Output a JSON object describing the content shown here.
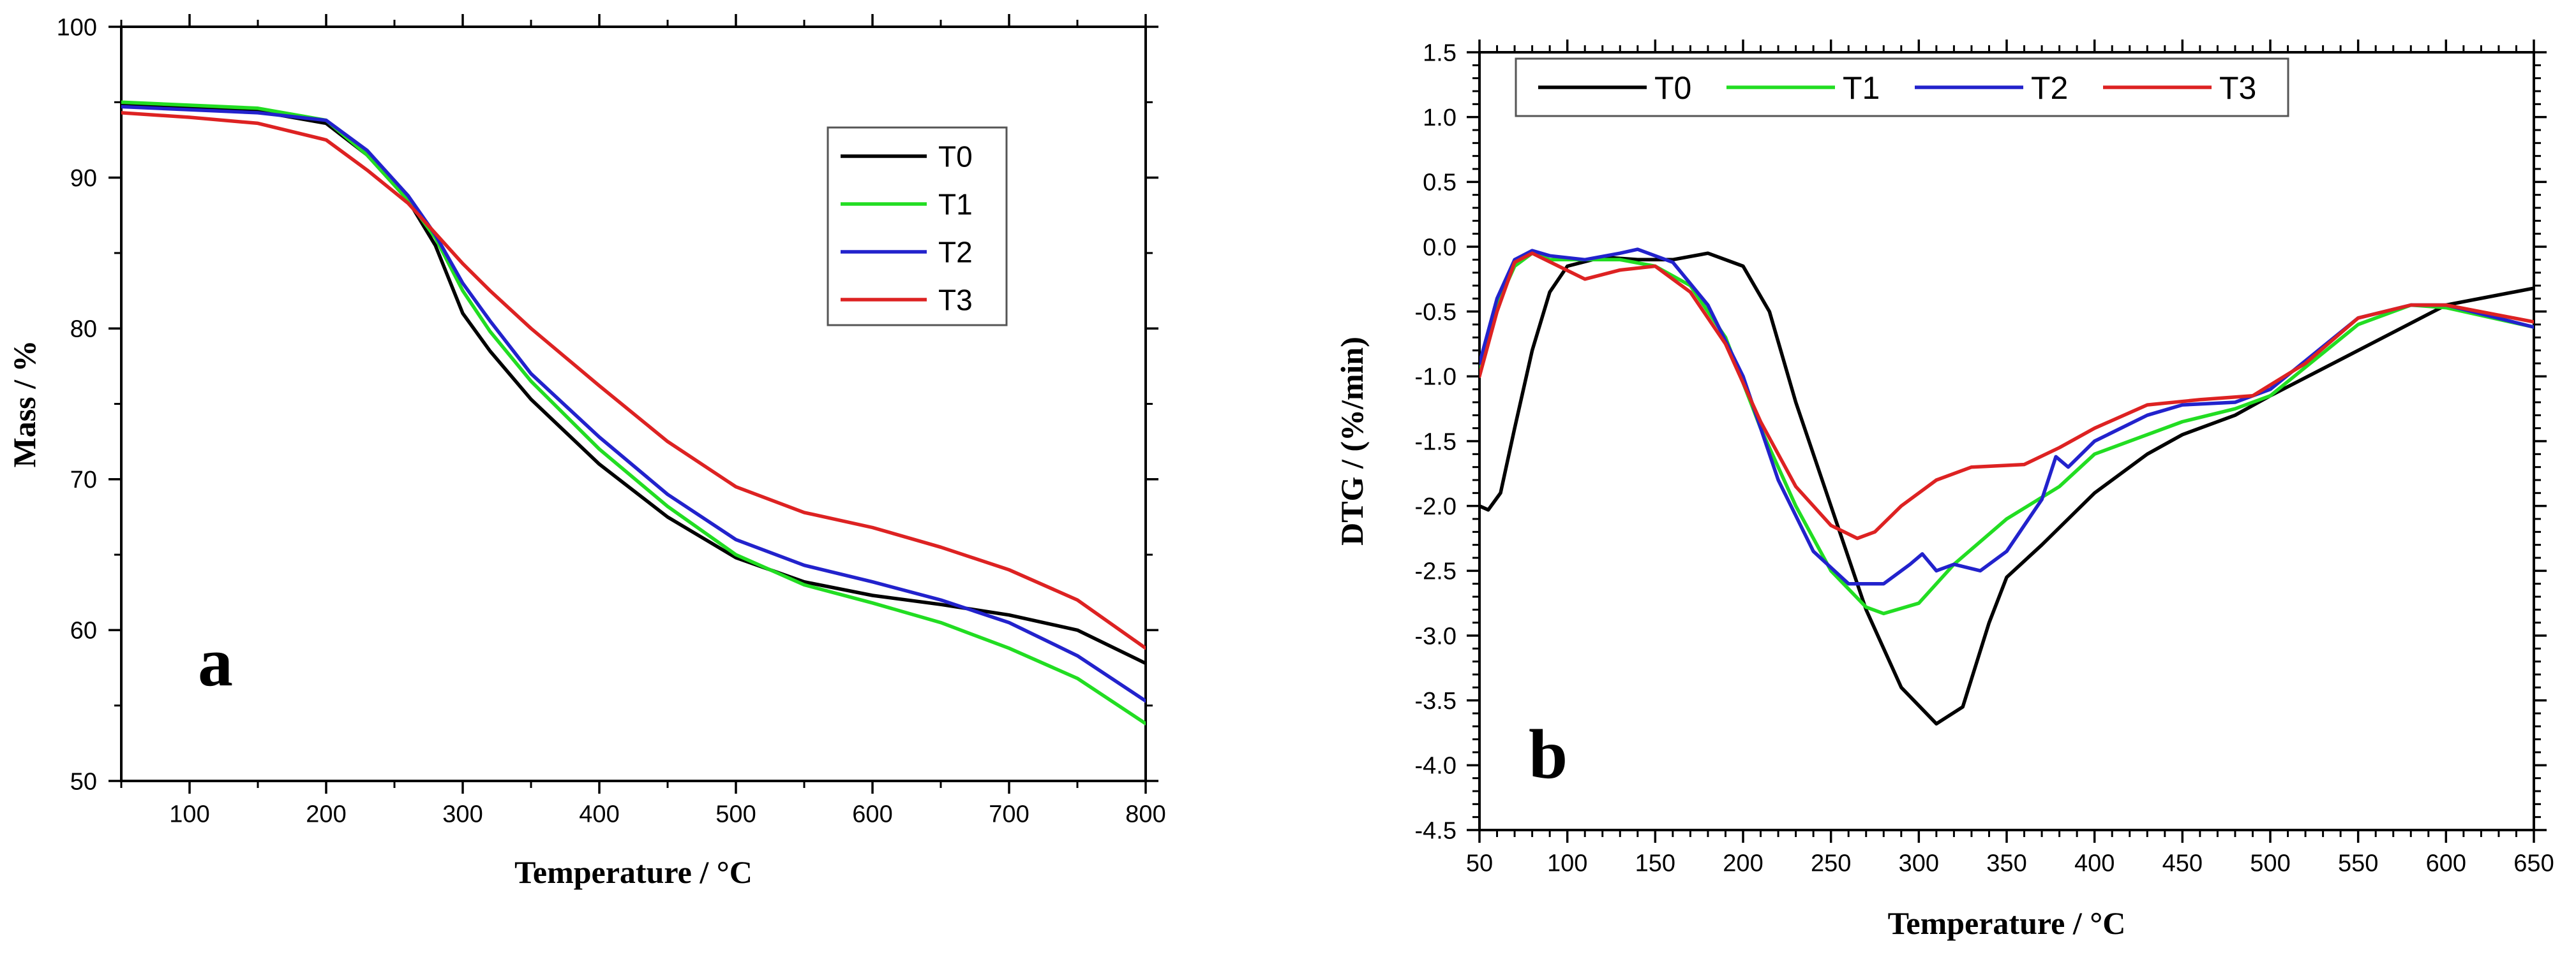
{
  "chart_data": [
    {
      "type": "line",
      "panel_label": "a",
      "title": "",
      "xlabel": "Temperature / °C",
      "ylabel": "Mass / %",
      "xlim": [
        50,
        800
      ],
      "ylim": [
        50,
        100
      ],
      "xticks": [
        100,
        200,
        300,
        400,
        500,
        600,
        700,
        800
      ],
      "yticks": [
        50,
        60,
        70,
        80,
        90,
        100
      ],
      "x_minor_step": 50,
      "y_minor_step": 5,
      "legend_position": "upper-right",
      "series": [
        {
          "name": "T0",
          "color": "#000000",
          "points": [
            [
              50,
              94.8
            ],
            [
              100,
              94.6
            ],
            [
              150,
              94.4
            ],
            [
              200,
              93.6
            ],
            [
              230,
              91.5
            ],
            [
              260,
              88.5
            ],
            [
              280,
              85.5
            ],
            [
              300,
              81.0
            ],
            [
              320,
              78.5
            ],
            [
              350,
              75.3
            ],
            [
              400,
              71.0
            ],
            [
              450,
              67.5
            ],
            [
              500,
              64.8
            ],
            [
              550,
              63.2
            ],
            [
              600,
              62.3
            ],
            [
              650,
              61.7
            ],
            [
              700,
              61.0
            ],
            [
              750,
              60.0
            ],
            [
              800,
              57.8
            ]
          ]
        },
        {
          "name": "T1",
          "color": "#22dd22",
          "points": [
            [
              50,
              95.0
            ],
            [
              100,
              94.8
            ],
            [
              150,
              94.6
            ],
            [
              200,
              93.8
            ],
            [
              230,
              91.5
            ],
            [
              260,
              88.5
            ],
            [
              280,
              86.0
            ],
            [
              300,
              82.5
            ],
            [
              320,
              79.8
            ],
            [
              350,
              76.5
            ],
            [
              400,
              72.0
            ],
            [
              450,
              68.2
            ],
            [
              500,
              65.0
            ],
            [
              550,
              63.0
            ],
            [
              600,
              61.8
            ],
            [
              650,
              60.5
            ],
            [
              700,
              58.8
            ],
            [
              750,
              56.8
            ],
            [
              800,
              53.8
            ]
          ]
        },
        {
          "name": "T2",
          "color": "#2222cc",
          "points": [
            [
              50,
              94.7
            ],
            [
              100,
              94.5
            ],
            [
              150,
              94.3
            ],
            [
              200,
              93.8
            ],
            [
              230,
              91.8
            ],
            [
              260,
              88.8
            ],
            [
              280,
              86.2
            ],
            [
              300,
              83.0
            ],
            [
              320,
              80.5
            ],
            [
              350,
              77.0
            ],
            [
              400,
              72.8
            ],
            [
              450,
              69.0
            ],
            [
              500,
              66.0
            ],
            [
              550,
              64.3
            ],
            [
              600,
              63.2
            ],
            [
              650,
              62.0
            ],
            [
              700,
              60.5
            ],
            [
              750,
              58.3
            ],
            [
              800,
              55.3
            ]
          ]
        },
        {
          "name": "T3",
          "color": "#dd2222",
          "points": [
            [
              50,
              94.3
            ],
            [
              100,
              94.0
            ],
            [
              150,
              93.6
            ],
            [
              200,
              92.5
            ],
            [
              230,
              90.5
            ],
            [
              260,
              88.3
            ],
            [
              280,
              86.3
            ],
            [
              300,
              84.3
            ],
            [
              320,
              82.5
            ],
            [
              350,
              80.0
            ],
            [
              400,
              76.2
            ],
            [
              450,
              72.5
            ],
            [
              500,
              69.5
            ],
            [
              550,
              67.8
            ],
            [
              600,
              66.8
            ],
            [
              650,
              65.5
            ],
            [
              700,
              64.0
            ],
            [
              750,
              62.0
            ],
            [
              800,
              58.8
            ]
          ]
        }
      ]
    },
    {
      "type": "line",
      "panel_label": "b",
      "title": "",
      "xlabel": "Temperature / °C",
      "ylabel": "DTG / (%/min)",
      "xlim": [
        50,
        650
      ],
      "ylim": [
        -4.5,
        1.5
      ],
      "xticks": [
        50,
        100,
        150,
        200,
        250,
        300,
        350,
        400,
        450,
        500,
        550,
        600,
        650
      ],
      "yticks": [
        -4.5,
        -4.0,
        -3.5,
        -3.0,
        -2.5,
        -2.0,
        -1.5,
        -1.0,
        -0.5,
        0.0,
        0.5,
        1.0,
        1.5
      ],
      "x_minor_step": 10,
      "y_minor_step": 0.1,
      "legend_position": "top",
      "series": [
        {
          "name": "T0",
          "color": "#000000",
          "points": [
            [
              50,
              -2.0
            ],
            [
              55,
              -2.03
            ],
            [
              62,
              -1.9
            ],
            [
              70,
              -1.4
            ],
            [
              80,
              -0.8
            ],
            [
              90,
              -0.35
            ],
            [
              100,
              -0.15
            ],
            [
              120,
              -0.08
            ],
            [
              140,
              -0.1
            ],
            [
              160,
              -0.1
            ],
            [
              180,
              -0.05
            ],
            [
              200,
              -0.15
            ],
            [
              215,
              -0.5
            ],
            [
              230,
              -1.2
            ],
            [
              250,
              -2.0
            ],
            [
              270,
              -2.8
            ],
            [
              290,
              -3.4
            ],
            [
              310,
              -3.68
            ],
            [
              325,
              -3.55
            ],
            [
              340,
              -2.9
            ],
            [
              350,
              -2.55
            ],
            [
              370,
              -2.3
            ],
            [
              400,
              -1.9
            ],
            [
              430,
              -1.6
            ],
            [
              450,
              -1.45
            ],
            [
              480,
              -1.3
            ],
            [
              500,
              -1.15
            ],
            [
              550,
              -0.8
            ],
            [
              600,
              -0.45
            ],
            [
              650,
              -0.32
            ]
          ]
        },
        {
          "name": "T1",
          "color": "#22dd22",
          "points": [
            [
              50,
              -0.95
            ],
            [
              60,
              -0.45
            ],
            [
              70,
              -0.15
            ],
            [
              80,
              -0.05
            ],
            [
              90,
              -0.1
            ],
            [
              110,
              -0.1
            ],
            [
              130,
              -0.1
            ],
            [
              150,
              -0.15
            ],
            [
              170,
              -0.3
            ],
            [
              190,
              -0.7
            ],
            [
              210,
              -1.4
            ],
            [
              230,
              -2.0
            ],
            [
              250,
              -2.5
            ],
            [
              270,
              -2.78
            ],
            [
              280,
              -2.83
            ],
            [
              300,
              -2.75
            ],
            [
              320,
              -2.45
            ],
            [
              350,
              -2.1
            ],
            [
              380,
              -1.85
            ],
            [
              400,
              -1.6
            ],
            [
              450,
              -1.35
            ],
            [
              480,
              -1.25
            ],
            [
              500,
              -1.15
            ],
            [
              550,
              -0.6
            ],
            [
              580,
              -0.45
            ],
            [
              600,
              -0.47
            ],
            [
              650,
              -0.62
            ]
          ]
        },
        {
          "name": "T2",
          "color": "#2222cc",
          "points": [
            [
              50,
              -0.9
            ],
            [
              60,
              -0.4
            ],
            [
              70,
              -0.1
            ],
            [
              80,
              -0.03
            ],
            [
              90,
              -0.07
            ],
            [
              110,
              -0.1
            ],
            [
              130,
              -0.05
            ],
            [
              140,
              -0.02
            ],
            [
              160,
              -0.12
            ],
            [
              180,
              -0.45
            ],
            [
              200,
              -1.0
            ],
            [
              220,
              -1.8
            ],
            [
              240,
              -2.35
            ],
            [
              260,
              -2.6
            ],
            [
              280,
              -2.6
            ],
            [
              295,
              -2.45
            ],
            [
              302,
              -2.37
            ],
            [
              310,
              -2.5
            ],
            [
              320,
              -2.45
            ],
            [
              335,
              -2.5
            ],
            [
              350,
              -2.35
            ],
            [
              370,
              -1.95
            ],
            [
              378,
              -1.62
            ],
            [
              385,
              -1.7
            ],
            [
              400,
              -1.5
            ],
            [
              430,
              -1.3
            ],
            [
              450,
              -1.22
            ],
            [
              480,
              -1.2
            ],
            [
              500,
              -1.1
            ],
            [
              550,
              -0.55
            ],
            [
              580,
              -0.45
            ],
            [
              600,
              -0.45
            ],
            [
              650,
              -0.62
            ]
          ]
        },
        {
          "name": "T3",
          "color": "#dd2222",
          "points": [
            [
              50,
              -1.0
            ],
            [
              60,
              -0.5
            ],
            [
              70,
              -0.12
            ],
            [
              80,
              -0.05
            ],
            [
              95,
              -0.15
            ],
            [
              110,
              -0.25
            ],
            [
              130,
              -0.18
            ],
            [
              150,
              -0.15
            ],
            [
              170,
              -0.35
            ],
            [
              190,
              -0.75
            ],
            [
              210,
              -1.35
            ],
            [
              230,
              -1.85
            ],
            [
              250,
              -2.15
            ],
            [
              265,
              -2.25
            ],
            [
              275,
              -2.2
            ],
            [
              290,
              -2.0
            ],
            [
              310,
              -1.8
            ],
            [
              330,
              -1.7
            ],
            [
              360,
              -1.68
            ],
            [
              380,
              -1.55
            ],
            [
              400,
              -1.4
            ],
            [
              430,
              -1.22
            ],
            [
              460,
              -1.18
            ],
            [
              490,
              -1.15
            ],
            [
              520,
              -0.9
            ],
            [
              550,
              -0.55
            ],
            [
              580,
              -0.45
            ],
            [
              600,
              -0.45
            ],
            [
              650,
              -0.58
            ]
          ]
        }
      ]
    }
  ]
}
